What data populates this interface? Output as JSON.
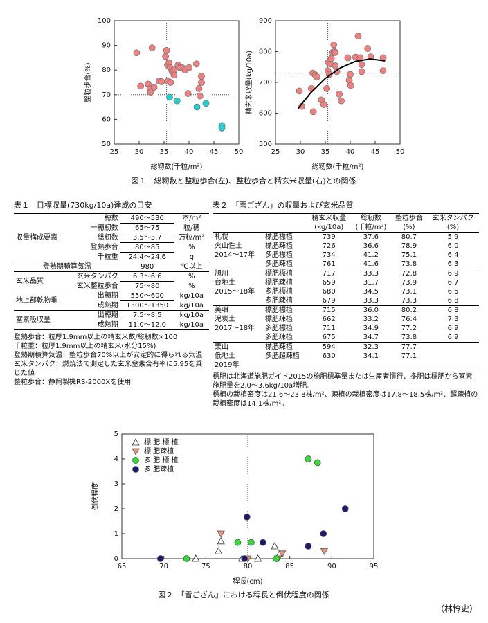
{
  "chart_data": [
    {
      "type": "scatter",
      "x_label": "総籾数(千粒/m²)",
      "y_label": "整粒歩合(%)",
      "xlim": [
        25,
        50
      ],
      "xticks": [
        25,
        30,
        35,
        40,
        45,
        50
      ],
      "ylim": [
        50,
        100
      ],
      "yticks": [
        50,
        60,
        70,
        80,
        90,
        100
      ],
      "ref_x": 35.5,
      "ref_y": 70,
      "series": [
        {
          "color": "#f08080",
          "marker": "circle",
          "x": [
            29.5,
            30.3,
            31.8,
            32.2,
            32.3,
            32.6,
            33,
            34,
            34.5,
            35.3,
            35.5,
            35.7,
            35.8,
            36,
            36.2,
            36.3,
            36.6,
            37,
            37,
            37.8,
            38.2,
            38.6,
            39.2,
            40,
            39.8,
            42,
            42.5,
            42.5,
            42.2,
            41.5
          ],
          "values": [
            87,
            73.5,
            74.3,
            72.5,
            71,
            89,
            73,
            75.5,
            75.3,
            85.5,
            88,
            82,
            75.5,
            83,
            81,
            75,
            79.5,
            80,
            78,
            82,
            81,
            81,
            80,
            81,
            70.5,
            72.5,
            77.5,
            75,
            69.5,
            82.5
          ]
        },
        {
          "color": "#22d3d3",
          "marker": "circle",
          "x": [
            36.1,
            37.6,
            41.6,
            43.4,
            46.6,
            46.6
          ],
          "values": [
            69,
            67.5,
            65,
            66.5,
            57.5,
            56.5
          ]
        }
      ]
    },
    {
      "type": "scatter",
      "x_label": "総籾数(千粒/m²)",
      "y_label": "精玄米収量(kg/10a)",
      "xlim": [
        25,
        50
      ],
      "xticks": [
        25,
        30,
        35,
        40,
        45,
        50
      ],
      "ylim": [
        500,
        900
      ],
      "yticks": [
        500,
        600,
        700,
        800,
        900
      ],
      "ref_x": 35.5,
      "ref_y": 730,
      "series": [
        {
          "color": "#f08080",
          "marker": "circle",
          "x": [
            29.8,
            30.3,
            32.2,
            32.5,
            32.6,
            33,
            33.3,
            34.2,
            34.7,
            35.3,
            35.5,
            35.6,
            35.8,
            36,
            36.2,
            36.5,
            36.8,
            36.7,
            37,
            37,
            37.3,
            37.8,
            38.2,
            39.5,
            39.8,
            40.1,
            40,
            41.1,
            41.6,
            42,
            42.3,
            42.3,
            43.5,
            44.1,
            46.6,
            46.6
          ],
          "values": [
            672,
            622,
            680,
            730,
            605,
            724,
            718,
            643,
            628,
            680,
            738,
            765,
            726,
            760,
            778,
            797,
            800,
            822,
            797,
            754,
            735,
            662,
            640,
            780,
            707,
            690,
            726,
            782,
            850,
            780,
            735,
            758,
            810,
            783,
            780,
            738
          ]
        },
        {
          "color": "#000000",
          "marker": "line",
          "x": [
            29.5,
            32,
            35,
            38,
            41,
            44,
            47
          ],
          "values": [
            615,
            665,
            713,
            747,
            768,
            776,
            770
          ]
        }
      ]
    },
    {
      "type": "scatter",
      "x_label": "稈長(cm)",
      "y_label": "倒伏程度",
      "xlim": [
        65,
        95
      ],
      "xticks": [
        65,
        70,
        75,
        80,
        85,
        90,
        95
      ],
      "ylim": [
        0,
        5
      ],
      "yticks": [
        0,
        1,
        2,
        3,
        4,
        5
      ],
      "ref_x": 80,
      "legend": "upper left",
      "series": [
        {
          "name": "標 肥 標 植",
          "color": "#ffffff",
          "edgecolor": "#333333",
          "marker": "triangle",
          "x": [
            73.8,
            76.5,
            76.8,
            79.3,
            81.2,
            83.2,
            83.8
          ],
          "values": [
            0,
            0.3,
            0.7,
            0,
            0,
            0.5,
            0.2
          ]
        },
        {
          "name": "標 肥疎植",
          "color": "#e9967a",
          "edgecolor": "#555555",
          "marker": "triangle-down",
          "x": [
            76.8,
            80,
            83.6,
            84.1,
            89.1
          ],
          "values": [
            1,
            0,
            0,
            0.2,
            0.3
          ]
        },
        {
          "name": "多 肥 標 植",
          "color": "#33dd33",
          "edgecolor": "#555555",
          "marker": "circle",
          "x": [
            72.7,
            78.8,
            80.4,
            87.2,
            88.3,
            83.4
          ],
          "values": [
            0,
            0.65,
            0.65,
            4,
            3.85,
            0
          ]
        },
        {
          "name": "多 肥疎植",
          "color": "#1a1a6e",
          "edgecolor": "#555555",
          "marker": "circle",
          "x": [
            69.6,
            79.6,
            79.9,
            81.8,
            87.2,
            89,
            91.6
          ],
          "values": [
            0,
            0,
            1.67,
            0.65,
            0.5,
            1,
            2
          ]
        }
      ]
    }
  ],
  "figure1_caption": "図１　総籾数と整粒歩合(左)、整粒歩合と精玄米収量(右)との関係",
  "figure2_caption": "図２　「雪ござん」における稈長と倒伏程度の関係",
  "author": "（林怜史）",
  "table1": {
    "title": "表１　目標収量(730kg/10a)達成の目安",
    "groups": [
      {
        "label": "収量構成要素",
        "rows": [
          [
            "穂数",
            "490～530",
            "本/m²"
          ],
          [
            "一穂籾数",
            "65～75",
            "粒/穂"
          ],
          [
            "総籾数",
            "3.5～3.7",
            "万粒/m²"
          ],
          [
            "登熟歩合",
            "80～85",
            "%"
          ],
          [
            "千粒重",
            "24.4～24.6",
            "g"
          ]
        ]
      },
      {
        "label": "登熟期積算気温",
        "rows": [
          [
            "980",
            "℃以上"
          ]
        ]
      },
      {
        "label": "玄米品質",
        "rows": [
          [
            "玄米タンパク",
            "6.3～6.6",
            "%"
          ],
          [
            "玄米整粒歩合",
            "75～80",
            "%"
          ]
        ]
      },
      {
        "label": "地上部乾物重",
        "rows": [
          [
            "出穂期",
            "550～600",
            "kg/10a"
          ],
          [
            "成熟期",
            "1300～1350",
            "kg/10a"
          ]
        ]
      },
      {
        "label": "窒素吸収量",
        "rows": [
          [
            "出穂期",
            "7.5～8.5",
            "kg/10a"
          ],
          [
            "成熟期",
            "11.0～12.0",
            "kg/10a"
          ]
        ]
      }
    ],
    "notes": [
      "登熟歩合：粒厚1.9mm以上の精玄米数/総籾数×100",
      "千粒重：粒厚1.9mm以上の精玄米(水分15%)",
      "登熟期積算気温：整粒歩合70%以上が安定的に得られる気温",
      "玄米タンパク：燃焼法で測定した玄米窒素含有率に5.95を乗じた値",
      "整粒歩合：静岡製機RS-2000Xを使用"
    ]
  },
  "table2": {
    "title": "表２　「雪ござん」の収量および玄米品質",
    "columns": [
      [
        "精玄米収量",
        "(kg/10a)"
      ],
      [
        "総籾数",
        "(千粒/m²)"
      ],
      [
        "整粒歩合",
        "(%)"
      ],
      [
        "玄米タンパク",
        "(%)"
      ]
    ],
    "groups": [
      {
        "site": [
          "札幌",
          "火山性土",
          "2014～17年"
        ],
        "rows": [
          [
            "標肥標植",
            "739",
            "37.6",
            "80.7",
            "5.9"
          ],
          [
            "標肥疎植",
            "726",
            "36.6",
            "78.9",
            "6.0"
          ],
          [
            "多肥標植",
            "734",
            "41.2",
            "75.1",
            "6.4"
          ],
          [
            "多肥疎植",
            "761",
            "41.6",
            "73.8",
            "6.3"
          ]
        ]
      },
      {
        "site": [
          "旭川",
          "台地土",
          "2015～18年"
        ],
        "rows": [
          [
            "標肥標植",
            "717",
            "33.3",
            "72.8",
            "6.9"
          ],
          [
            "標肥疎植",
            "659",
            "31.7",
            "73.9",
            "6.7"
          ],
          [
            "多肥標植",
            "680",
            "34.5",
            "73.1",
            "6.5"
          ],
          [
            "多肥疎植",
            "679",
            "33.3",
            "73.3",
            "6.8"
          ]
        ]
      },
      {
        "site": [
          "美唄",
          "泥炭土",
          "2017～18年"
        ],
        "rows": [
          [
            "標肥標植",
            "715",
            "36.0",
            "80.2",
            "6.8"
          ],
          [
            "標肥疎植",
            "662",
            "33.2",
            "76.4",
            "7.3"
          ],
          [
            "多肥標植",
            "711",
            "34.9",
            "77.2",
            "6.9"
          ],
          [
            "多肥疎植",
            "675",
            "34.7",
            "73.8",
            "6.9"
          ]
        ]
      },
      {
        "site": [
          "栗山",
          "低地土",
          "2019年"
        ],
        "rows": [
          [
            "標肥疎植",
            "594",
            "32.3",
            "77.7"
          ],
          [
            "多肥超疎植",
            "630",
            "34.1",
            "77.1"
          ]
        ]
      }
    ],
    "notes": [
      "標肥は北海道施肥ガイド2015の施肥標準量または生産者慣行、多肥は標肥から窒素施肥量を2.0～3.6kg/10a増肥。",
      "標植の栽植密度は21.6～23.8株/m²、疎植の栽植密度は17.8～18.5株/m²、超疎植の栽植密度は14.1株/m²。"
    ]
  }
}
